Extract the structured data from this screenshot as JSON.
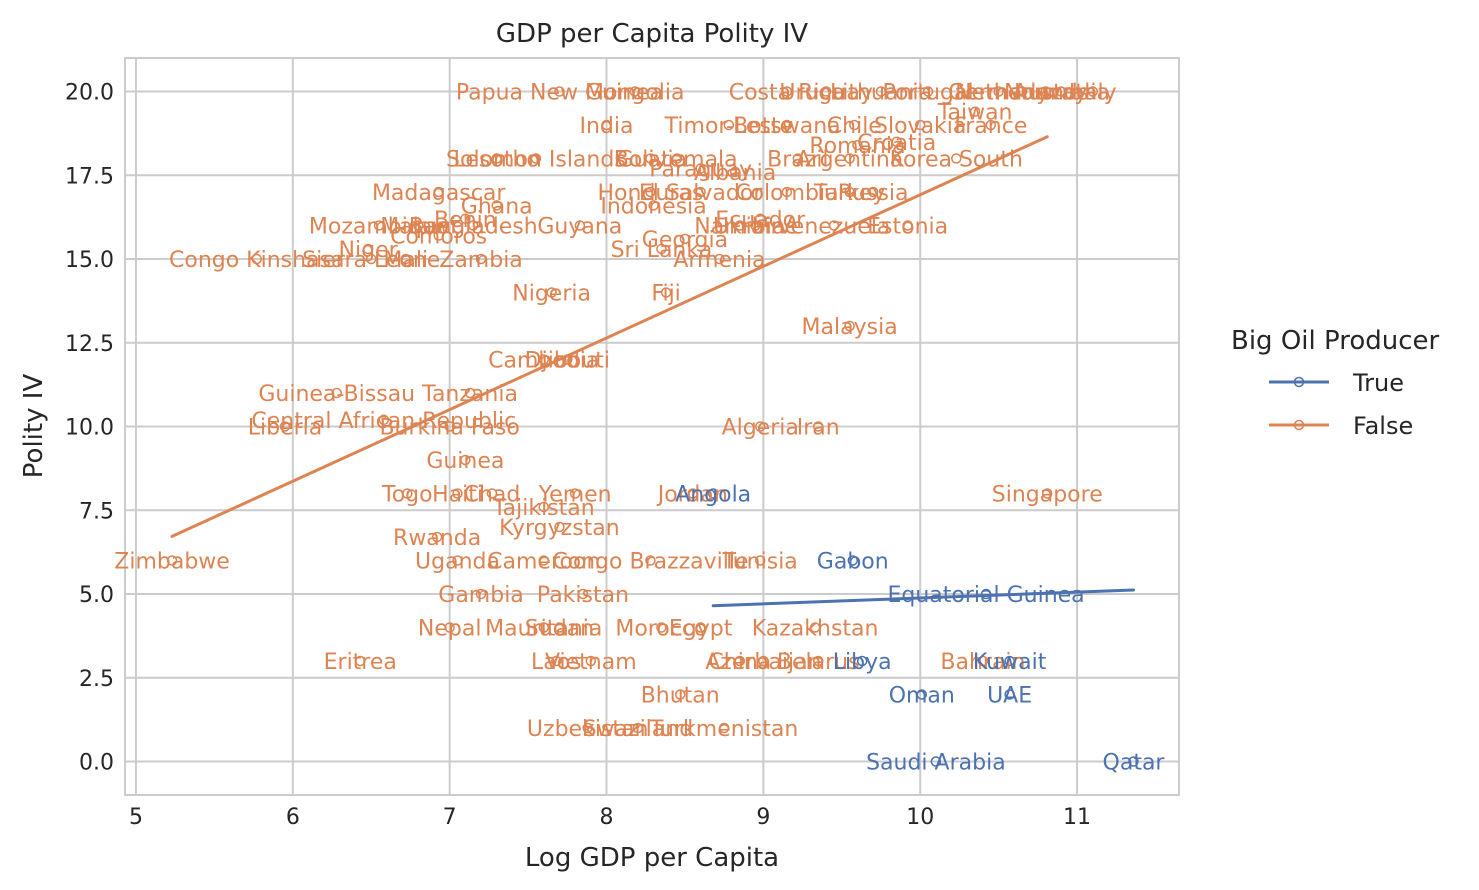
{
  "chart_data": {
    "type": "scatter",
    "title": "GDP per Capita Polity IV",
    "xlabel": "Log GDP per Capita",
    "ylabel": "Polity IV",
    "xlim": [
      4.93,
      11.65
    ],
    "ylim": [
      -1.0,
      21.0
    ],
    "xticks": [
      5,
      6,
      7,
      8,
      9,
      10,
      11
    ],
    "yticks": [
      0.0,
      2.5,
      5.0,
      7.5,
      10.0,
      12.5,
      15.0,
      17.5,
      20.0
    ],
    "ytick_labels": [
      "0.0",
      "2.5",
      "5.0",
      "7.5",
      "10.0",
      "12.5",
      "15.0",
      "17.5",
      "20.0"
    ],
    "grid": true,
    "legend": {
      "title": "Big Oil Producer",
      "placement": "right",
      "entries": [
        "True",
        "False"
      ]
    },
    "colors": {
      "True": "#4c72b0",
      "False": "#dd8452"
    },
    "series": [
      {
        "name": "True",
        "fit_line": [
          [
            8.68,
            4.65
          ],
          [
            11.36,
            5.12
          ]
        ],
        "points": [
          {
            "label": "Angola",
            "x": 8.68,
            "y": 8
          },
          {
            "label": "Gabon",
            "x": 9.57,
            "y": 6
          },
          {
            "label": "Equatorial Guinea",
            "x": 10.42,
            "y": 5
          },
          {
            "label": "Oman",
            "x": 10.01,
            "y": 2
          },
          {
            "label": "UAE",
            "x": 10.57,
            "y": 2
          },
          {
            "label": "Kuwait",
            "x": 10.57,
            "y": 3
          },
          {
            "label": "Libya",
            "x": 9.63,
            "y": 3
          },
          {
            "label": "Saudi Arabia",
            "x": 10.1,
            "y": 0
          },
          {
            "label": "Qatar",
            "x": 11.36,
            "y": 0
          }
        ]
      },
      {
        "name": "False",
        "fit_line": [
          [
            5.23,
            6.72
          ],
          [
            10.81,
            18.65
          ]
        ],
        "points": [
          {
            "label": "Zimbabwe",
            "x": 5.23,
            "y": 6
          },
          {
            "label": "Papua New Guinea",
            "x": 7.7,
            "y": 20
          },
          {
            "label": "Mongolia",
            "x": 8.18,
            "y": 20
          },
          {
            "label": "India",
            "x": 8.0,
            "y": 19
          },
          {
            "label": "Costa Rica",
            "x": 9.15,
            "y": 20
          },
          {
            "label": "Uruguay",
            "x": 9.4,
            "y": 20
          },
          {
            "label": "Lithuania",
            "x": 9.75,
            "y": 20
          },
          {
            "label": "Portugal",
            "x": 10.05,
            "y": 20
          },
          {
            "label": "Germany",
            "x": 10.5,
            "y": 20
          },
          {
            "label": "Netherlands",
            "x": 10.65,
            "y": 20
          },
          {
            "label": "Norway",
            "x": 10.8,
            "y": 20
          },
          {
            "label": "Australia",
            "x": 10.9,
            "y": 20
          },
          {
            "label": "Italy",
            "x": 11.1,
            "y": 20
          },
          {
            "label": "Timor-Leste",
            "x": 8.78,
            "y": 19
          },
          {
            "label": "Botswana",
            "x": 9.15,
            "y": 19
          },
          {
            "label": "Chile",
            "x": 9.58,
            "y": 19
          },
          {
            "label": "Slovakia",
            "x": 10.0,
            "y": 19
          },
          {
            "label": "France",
            "x": 10.45,
            "y": 19
          },
          {
            "label": "Taiwan",
            "x": 10.35,
            "y": 19.4
          },
          {
            "label": "Lesotho",
            "x": 7.3,
            "y": 18
          },
          {
            "label": "Solomon Islands",
            "x": 7.55,
            "y": 18
          },
          {
            "label": "Bolivia",
            "x": 8.28,
            "y": 18
          },
          {
            "label": "Guatemala",
            "x": 8.45,
            "y": 18
          },
          {
            "label": "Paraguay",
            "x": 8.6,
            "y": 17.7
          },
          {
            "label": "Albania",
            "x": 8.82,
            "y": 17.6
          },
          {
            "label": "Brazil",
            "x": 9.22,
            "y": 18
          },
          {
            "label": "Argentina",
            "x": 9.55,
            "y": 18
          },
          {
            "label": "Romania",
            "x": 9.6,
            "y": 18.4
          },
          {
            "label": "Croatia",
            "x": 9.85,
            "y": 18.5
          },
          {
            "label": "Korea South",
            "x": 10.23,
            "y": 18
          },
          {
            "label": "Madagascar",
            "x": 6.93,
            "y": 17
          },
          {
            "label": "Ghana",
            "x": 7.3,
            "y": 16.6
          },
          {
            "label": "Honduras",
            "x": 8.28,
            "y": 17
          },
          {
            "label": "Indonesia",
            "x": 8.3,
            "y": 16.6
          },
          {
            "label": "El Salvador",
            "x": 8.6,
            "y": 17
          },
          {
            "label": "Colombia",
            "x": 9.15,
            "y": 17
          },
          {
            "label": "Turkey",
            "x": 9.55,
            "y": 17
          },
          {
            "label": "Russia",
            "x": 9.7,
            "y": 17
          },
          {
            "label": "Mozambique",
            "x": 6.55,
            "y": 16
          },
          {
            "label": "Malawi",
            "x": 6.8,
            "y": 16
          },
          {
            "label": "Benin",
            "x": 7.1,
            "y": 16.2
          },
          {
            "label": "Comoros",
            "x": 6.93,
            "y": 15.7
          },
          {
            "label": "Bangladesh",
            "x": 7.15,
            "y": 16
          },
          {
            "label": "Guyana",
            "x": 7.83,
            "y": 16
          },
          {
            "label": "Ecuador",
            "x": 8.98,
            "y": 16.2
          },
          {
            "label": "Namibia",
            "x": 8.85,
            "y": 16
          },
          {
            "label": "Ukraine",
            "x": 8.95,
            "y": 16
          },
          {
            "label": "Venezuela",
            "x": 9.45,
            "y": 16
          },
          {
            "label": "Estonia",
            "x": 9.92,
            "y": 16
          },
          {
            "label": "Georgia",
            "x": 8.5,
            "y": 15.6
          },
          {
            "label": "Sri Lanka",
            "x": 8.35,
            "y": 15.3
          },
          {
            "label": "Armenia",
            "x": 8.72,
            "y": 15
          },
          {
            "label": "Congo Kinshasa",
            "x": 5.77,
            "y": 15
          },
          {
            "label": "Sierra Leone",
            "x": 6.5,
            "y": 15
          },
          {
            "label": "Niger",
            "x": 6.48,
            "y": 15.3
          },
          {
            "label": "Mali",
            "x": 6.72,
            "y": 15
          },
          {
            "label": "Zambia",
            "x": 7.2,
            "y": 15
          },
          {
            "label": "Nigeria",
            "x": 7.65,
            "y": 14
          },
          {
            "label": "Fiji",
            "x": 8.38,
            "y": 14
          },
          {
            "label": "Malaysia",
            "x": 9.55,
            "y": 13
          },
          {
            "label": "Cambodia",
            "x": 7.6,
            "y": 12
          },
          {
            "label": "Djibouti",
            "x": 7.75,
            "y": 12
          },
          {
            "label": "Guinea-Bissau",
            "x": 6.28,
            "y": 11
          },
          {
            "label": "Tanzania",
            "x": 7.13,
            "y": 11
          },
          {
            "label": "Central African Republic",
            "x": 6.58,
            "y": 10.2
          },
          {
            "label": "Liberia",
            "x": 5.95,
            "y": 10
          },
          {
            "label": "Burkina Faso",
            "x": 7.0,
            "y": 10
          },
          {
            "label": "Algeria",
            "x": 8.98,
            "y": 10
          },
          {
            "label": "Iran",
            "x": 9.35,
            "y": 10
          },
          {
            "label": "Guinea",
            "x": 7.1,
            "y": 9
          },
          {
            "label": "Togo",
            "x": 6.73,
            "y": 8
          },
          {
            "label": "Haiti",
            "x": 7.05,
            "y": 8
          },
          {
            "label": "Chad",
            "x": 7.27,
            "y": 8
          },
          {
            "label": "Yemen",
            "x": 7.8,
            "y": 8
          },
          {
            "label": "Tajikistan",
            "x": 7.6,
            "y": 7.6
          },
          {
            "label": "Jordan",
            "x": 8.55,
            "y": 8
          },
          {
            "label": "Singapore",
            "x": 10.81,
            "y": 8
          },
          {
            "label": "Kyrgyzstan",
            "x": 7.7,
            "y": 7
          },
          {
            "label": "Rwanda",
            "x": 6.92,
            "y": 6.7
          },
          {
            "label": "Uganda",
            "x": 7.05,
            "y": 6
          },
          {
            "label": "Cameroon",
            "x": 7.6,
            "y": 6
          },
          {
            "label": "Congo Brazzaville",
            "x": 8.28,
            "y": 6
          },
          {
            "label": "Tunisia",
            "x": 8.98,
            "y": 6
          },
          {
            "label": "Gambia",
            "x": 7.2,
            "y": 5
          },
          {
            "label": "Pakistan",
            "x": 7.85,
            "y": 5
          },
          {
            "label": "Nepal",
            "x": 7.0,
            "y": 4
          },
          {
            "label": "Mauritania",
            "x": 7.6,
            "y": 4
          },
          {
            "label": "Sudan",
            "x": 7.7,
            "y": 4
          },
          {
            "label": "Morocco",
            "x": 8.35,
            "y": 4
          },
          {
            "label": "Egypt",
            "x": 8.6,
            "y": 4
          },
          {
            "label": "Kazakhstan",
            "x": 9.33,
            "y": 4
          },
          {
            "label": "Eritrea",
            "x": 6.43,
            "y": 3
          },
          {
            "label": "Laos",
            "x": 7.68,
            "y": 3
          },
          {
            "label": "Vietnam",
            "x": 7.9,
            "y": 3
          },
          {
            "label": "China",
            "x": 8.85,
            "y": 3
          },
          {
            "label": "Azerbaijan",
            "x": 9.0,
            "y": 3
          },
          {
            "label": "Belarus",
            "x": 9.35,
            "y": 3
          },
          {
            "label": "Bahrain",
            "x": 10.4,
            "y": 3
          },
          {
            "label": "Bhutan",
            "x": 8.47,
            "y": 2
          },
          {
            "label": "Uzbekistan",
            "x": 7.88,
            "y": 1
          },
          {
            "label": "Swaziland",
            "x": 8.2,
            "y": 1
          },
          {
            "label": "Turkmenistan",
            "x": 8.75,
            "y": 1
          }
        ]
      }
    ]
  }
}
